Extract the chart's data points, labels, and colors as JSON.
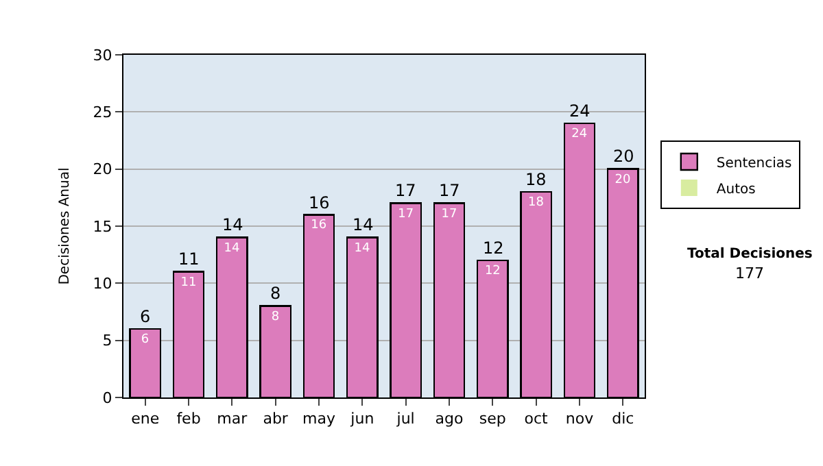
{
  "chart_data": {
    "type": "bar",
    "stacked": true,
    "ylabel": "Decisiones Anual",
    "categories": [
      "ene",
      "feb",
      "mar",
      "abr",
      "may",
      "jun",
      "jul",
      "ago",
      "sep",
      "oct",
      "nov",
      "dic"
    ],
    "series": [
      {
        "name": "Sentencias",
        "color": "#dc7cbc",
        "values": [
          6,
          11,
          14,
          8,
          16,
          14,
          17,
          17,
          12,
          18,
          24,
          20
        ],
        "value_labels": [
          "6",
          "11",
          "14",
          "8",
          "16",
          "14",
          "17",
          "17",
          "12",
          "18",
          "24",
          "20"
        ]
      },
      {
        "name": "Autos",
        "color": "#d8eca0",
        "values": [
          0,
          0,
          0,
          0,
          0,
          0,
          0,
          0,
          0,
          0,
          0,
          0
        ]
      }
    ],
    "totals": [
      "6",
      "11",
      "14",
      "8",
      "16",
      "14",
      "17",
      "17",
      "12",
      "18",
      "24",
      "20"
    ],
    "ylim": [
      0,
      30
    ],
    "yticks": [
      0,
      5,
      10,
      15,
      20,
      25,
      30
    ],
    "grid": "y",
    "legend": "right",
    "annotations": [
      "Total Decisiones",
      "177"
    ]
  }
}
